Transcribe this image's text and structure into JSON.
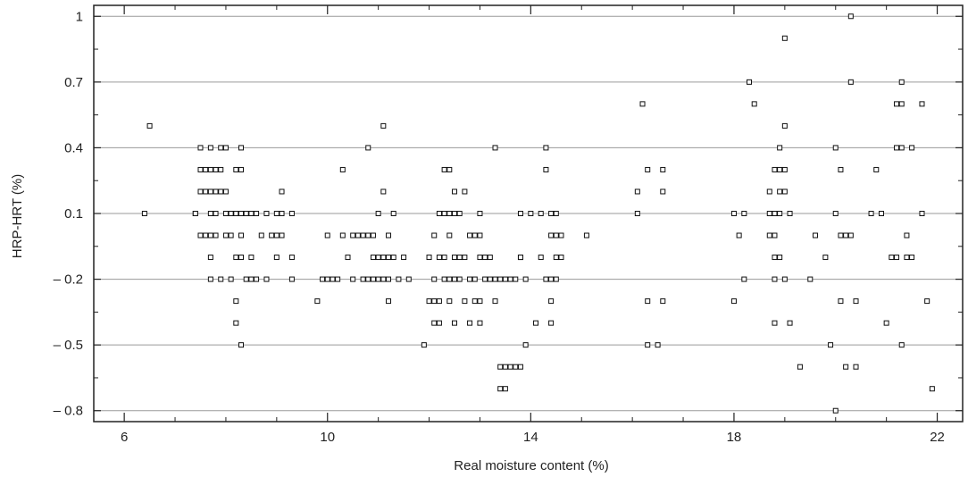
{
  "chart_data": {
    "type": "scatter",
    "title": "",
    "xlabel": "Real moisture content (%)",
    "ylabel": "HRP-HRT (%)",
    "xlim": [
      5.4,
      22.5
    ],
    "ylim": [
      -0.85,
      1.05
    ],
    "xticks": [
      6,
      10,
      14,
      18,
      22
    ],
    "yticks": [
      1,
      0.7,
      0.4,
      0.1,
      -0.2,
      -0.5,
      -0.8
    ],
    "ytick_labels": [
      "1",
      "0.7",
      "0.4",
      "0.1",
      "– 0.2",
      "– 0.5",
      "– 0.8"
    ],
    "grid": "horizontal",
    "marker": "open-square",
    "points": [
      [
        6.4,
        0.1
      ],
      [
        6.5,
        0.5
      ],
      [
        7.4,
        0.1
      ],
      [
        7.4,
        0.1
      ],
      [
        7.5,
        0.4
      ],
      [
        7.5,
        0.3
      ],
      [
        7.5,
        0.2
      ],
      [
        7.5,
        0.0
      ],
      [
        7.6,
        0.3
      ],
      [
        7.6,
        0.2
      ],
      [
        7.6,
        0.0
      ],
      [
        7.7,
        0.4
      ],
      [
        7.7,
        0.3
      ],
      [
        7.7,
        0.2
      ],
      [
        7.7,
        0.1
      ],
      [
        7.7,
        0.0
      ],
      [
        7.7,
        -0.1
      ],
      [
        7.7,
        -0.2
      ],
      [
        7.8,
        0.3
      ],
      [
        7.8,
        0.2
      ],
      [
        7.8,
        0.1
      ],
      [
        7.8,
        0.0
      ],
      [
        7.9,
        0.4
      ],
      [
        7.9,
        0.3
      ],
      [
        7.9,
        0.2
      ],
      [
        7.9,
        -0.2
      ],
      [
        8.0,
        0.4
      ],
      [
        8.0,
        0.2
      ],
      [
        8.0,
        0.1
      ],
      [
        8.0,
        0.0
      ],
      [
        8.1,
        0.1
      ],
      [
        8.1,
        0.0
      ],
      [
        8.1,
        -0.2
      ],
      [
        8.2,
        0.3
      ],
      [
        8.2,
        0.1
      ],
      [
        8.2,
        -0.1
      ],
      [
        8.2,
        -0.3
      ],
      [
        8.2,
        -0.4
      ],
      [
        8.3,
        0.4
      ],
      [
        8.3,
        0.3
      ],
      [
        8.3,
        0.1
      ],
      [
        8.3,
        0.0
      ],
      [
        8.3,
        -0.1
      ],
      [
        8.3,
        -0.5
      ],
      [
        8.4,
        0.1
      ],
      [
        8.4,
        -0.2
      ],
      [
        8.5,
        0.1
      ],
      [
        8.5,
        -0.1
      ],
      [
        8.5,
        -0.2
      ],
      [
        8.6,
        0.1
      ],
      [
        8.6,
        -0.2
      ],
      [
        8.7,
        0.0
      ],
      [
        8.8,
        0.1
      ],
      [
        8.8,
        -0.2
      ],
      [
        8.9,
        0.0
      ],
      [
        9.0,
        0.1
      ],
      [
        9.0,
        0.0
      ],
      [
        9.0,
        -0.1
      ],
      [
        9.1,
        0.2
      ],
      [
        9.1,
        0.1
      ],
      [
        9.1,
        0.0
      ],
      [
        9.3,
        0.1
      ],
      [
        9.3,
        -0.1
      ],
      [
        9.3,
        -0.2
      ],
      [
        9.8,
        -0.3
      ],
      [
        9.9,
        -0.2
      ],
      [
        10.0,
        -0.2
      ],
      [
        10.0,
        0.0
      ],
      [
        10.1,
        -0.2
      ],
      [
        10.2,
        -0.2
      ],
      [
        10.3,
        0.3
      ],
      [
        10.3,
        0.0
      ],
      [
        10.4,
        -0.1
      ],
      [
        10.5,
        -0.2
      ],
      [
        10.5,
        0.0
      ],
      [
        10.6,
        0.0
      ],
      [
        10.7,
        0.0
      ],
      [
        10.7,
        -0.2
      ],
      [
        10.8,
        0.0
      ],
      [
        10.8,
        -0.2
      ],
      [
        10.8,
        0.4
      ],
      [
        10.9,
        0.0
      ],
      [
        10.9,
        -0.1
      ],
      [
        10.9,
        -0.2
      ],
      [
        11.0,
        0.1
      ],
      [
        11.0,
        -0.1
      ],
      [
        11.0,
        -0.2
      ],
      [
        11.1,
        -0.1
      ],
      [
        11.1,
        -0.2
      ],
      [
        11.1,
        0.2
      ],
      [
        11.1,
        0.5
      ],
      [
        11.2,
        0.0
      ],
      [
        11.2,
        -0.1
      ],
      [
        11.2,
        -0.2
      ],
      [
        11.2,
        -0.3
      ],
      [
        11.3,
        0.1
      ],
      [
        11.3,
        -0.1
      ],
      [
        11.4,
        -0.2
      ],
      [
        11.5,
        -0.1
      ],
      [
        11.6,
        -0.2
      ],
      [
        11.9,
        -0.5
      ],
      [
        12.0,
        -0.1
      ],
      [
        12.0,
        -0.3
      ],
      [
        12.1,
        0.0
      ],
      [
        12.1,
        -0.2
      ],
      [
        12.1,
        -0.3
      ],
      [
        12.1,
        -0.4
      ],
      [
        12.2,
        0.1
      ],
      [
        12.2,
        -0.1
      ],
      [
        12.2,
        -0.3
      ],
      [
        12.2,
        -0.4
      ],
      [
        12.3,
        0.3
      ],
      [
        12.3,
        0.1
      ],
      [
        12.3,
        -0.1
      ],
      [
        12.3,
        -0.2
      ],
      [
        12.4,
        0.3
      ],
      [
        12.4,
        0.1
      ],
      [
        12.4,
        0.0
      ],
      [
        12.4,
        -0.2
      ],
      [
        12.4,
        -0.3
      ],
      [
        12.5,
        0.2
      ],
      [
        12.5,
        0.1
      ],
      [
        12.5,
        -0.1
      ],
      [
        12.5,
        -0.2
      ],
      [
        12.5,
        -0.4
      ],
      [
        12.6,
        0.1
      ],
      [
        12.6,
        -0.1
      ],
      [
        12.6,
        -0.2
      ],
      [
        12.7,
        0.2
      ],
      [
        12.7,
        -0.1
      ],
      [
        12.7,
        -0.3
      ],
      [
        12.8,
        0.0
      ],
      [
        12.8,
        -0.2
      ],
      [
        12.8,
        -0.4
      ],
      [
        12.9,
        0.0
      ],
      [
        12.9,
        -0.2
      ],
      [
        12.9,
        -0.3
      ],
      [
        13.0,
        0.1
      ],
      [
        13.0,
        0.0
      ],
      [
        13.0,
        -0.1
      ],
      [
        13.0,
        -0.3
      ],
      [
        13.0,
        -0.4
      ],
      [
        13.1,
        -0.1
      ],
      [
        13.1,
        -0.2
      ],
      [
        13.2,
        -0.1
      ],
      [
        13.2,
        -0.2
      ],
      [
        13.3,
        0.4
      ],
      [
        13.3,
        -0.2
      ],
      [
        13.3,
        -0.3
      ],
      [
        13.4,
        -0.2
      ],
      [
        13.5,
        -0.2
      ],
      [
        13.6,
        -0.2
      ],
      [
        13.7,
        -0.2
      ],
      [
        13.8,
        -0.1
      ],
      [
        13.4,
        -0.6
      ],
      [
        13.4,
        -0.7
      ],
      [
        13.5,
        -0.6
      ],
      [
        13.5,
        -0.7
      ],
      [
        13.6,
        -0.6
      ],
      [
        13.7,
        -0.6
      ],
      [
        13.8,
        -0.6
      ],
      [
        13.8,
        0.1
      ],
      [
        13.8,
        -0.1
      ],
      [
        13.9,
        -0.2
      ],
      [
        13.9,
        -0.5
      ],
      [
        14.0,
        0.1
      ],
      [
        14.1,
        -0.4
      ],
      [
        14.2,
        0.1
      ],
      [
        14.2,
        -0.1
      ],
      [
        14.3,
        0.4
      ],
      [
        14.3,
        0.3
      ],
      [
        14.3,
        -0.2
      ],
      [
        14.4,
        0.1
      ],
      [
        14.4,
        0.0
      ],
      [
        14.4,
        -0.2
      ],
      [
        14.4,
        -0.3
      ],
      [
        14.4,
        -0.4
      ],
      [
        14.5,
        0.1
      ],
      [
        14.5,
        0.0
      ],
      [
        14.5,
        -0.1
      ],
      [
        14.5,
        -0.2
      ],
      [
        14.6,
        0.0
      ],
      [
        14.6,
        -0.1
      ],
      [
        15.1,
        0.0
      ],
      [
        16.1,
        0.2
      ],
      [
        16.1,
        0.1
      ],
      [
        16.2,
        0.6
      ],
      [
        16.3,
        0.3
      ],
      [
        16.3,
        -0.3
      ],
      [
        16.3,
        -0.5
      ],
      [
        16.5,
        -0.5
      ],
      [
        16.6,
        0.3
      ],
      [
        16.6,
        0.2
      ],
      [
        16.6,
        -0.3
      ],
      [
        18.0,
        0.1
      ],
      [
        18.0,
        -0.3
      ],
      [
        18.1,
        0.0
      ],
      [
        18.2,
        0.1
      ],
      [
        18.2,
        -0.2
      ],
      [
        18.3,
        0.7
      ],
      [
        18.4,
        0.6
      ],
      [
        18.7,
        0.2
      ],
      [
        18.7,
        0.1
      ],
      [
        18.7,
        0.0
      ],
      [
        18.8,
        0.3
      ],
      [
        18.8,
        0.1
      ],
      [
        18.8,
        0.0
      ],
      [
        18.8,
        -0.1
      ],
      [
        18.8,
        -0.2
      ],
      [
        18.8,
        -0.4
      ],
      [
        18.9,
        0.4
      ],
      [
        18.9,
        0.3
      ],
      [
        18.9,
        0.2
      ],
      [
        18.9,
        0.1
      ],
      [
        18.9,
        -0.1
      ],
      [
        19.0,
        0.3
      ],
      [
        19.0,
        0.2
      ],
      [
        19.0,
        -0.2
      ],
      [
        19.0,
        0.5
      ],
      [
        19.0,
        0.9
      ],
      [
        19.1,
        0.1
      ],
      [
        19.1,
        -0.4
      ],
      [
        19.3,
        -0.6
      ],
      [
        19.5,
        -0.2
      ],
      [
        19.6,
        0.0
      ],
      [
        19.8,
        -0.1
      ],
      [
        19.9,
        -0.5
      ],
      [
        20.0,
        0.4
      ],
      [
        20.0,
        0.1
      ],
      [
        20.0,
        -0.8
      ],
      [
        20.1,
        0.3
      ],
      [
        20.1,
        0.0
      ],
      [
        20.1,
        -0.3
      ],
      [
        20.2,
        0.0
      ],
      [
        20.2,
        -0.6
      ],
      [
        20.3,
        1.0
      ],
      [
        20.3,
        0.7
      ],
      [
        20.3,
        0.0
      ],
      [
        20.4,
        -0.3
      ],
      [
        20.4,
        -0.6
      ],
      [
        20.7,
        0.1
      ],
      [
        20.8,
        0.3
      ],
      [
        20.9,
        0.1
      ],
      [
        21.0,
        -0.4
      ],
      [
        21.1,
        -0.1
      ],
      [
        21.2,
        0.6
      ],
      [
        21.2,
        0.4
      ],
      [
        21.2,
        -0.1
      ],
      [
        21.3,
        0.6
      ],
      [
        21.3,
        0.4
      ],
      [
        21.3,
        0.7
      ],
      [
        21.3,
        -0.5
      ],
      [
        21.4,
        0.0
      ],
      [
        21.4,
        -0.1
      ],
      [
        21.5,
        -0.1
      ],
      [
        21.5,
        0.4
      ],
      [
        21.7,
        0.6
      ],
      [
        21.7,
        0.1
      ],
      [
        21.8,
        -0.3
      ],
      [
        21.9,
        -0.7
      ]
    ]
  }
}
